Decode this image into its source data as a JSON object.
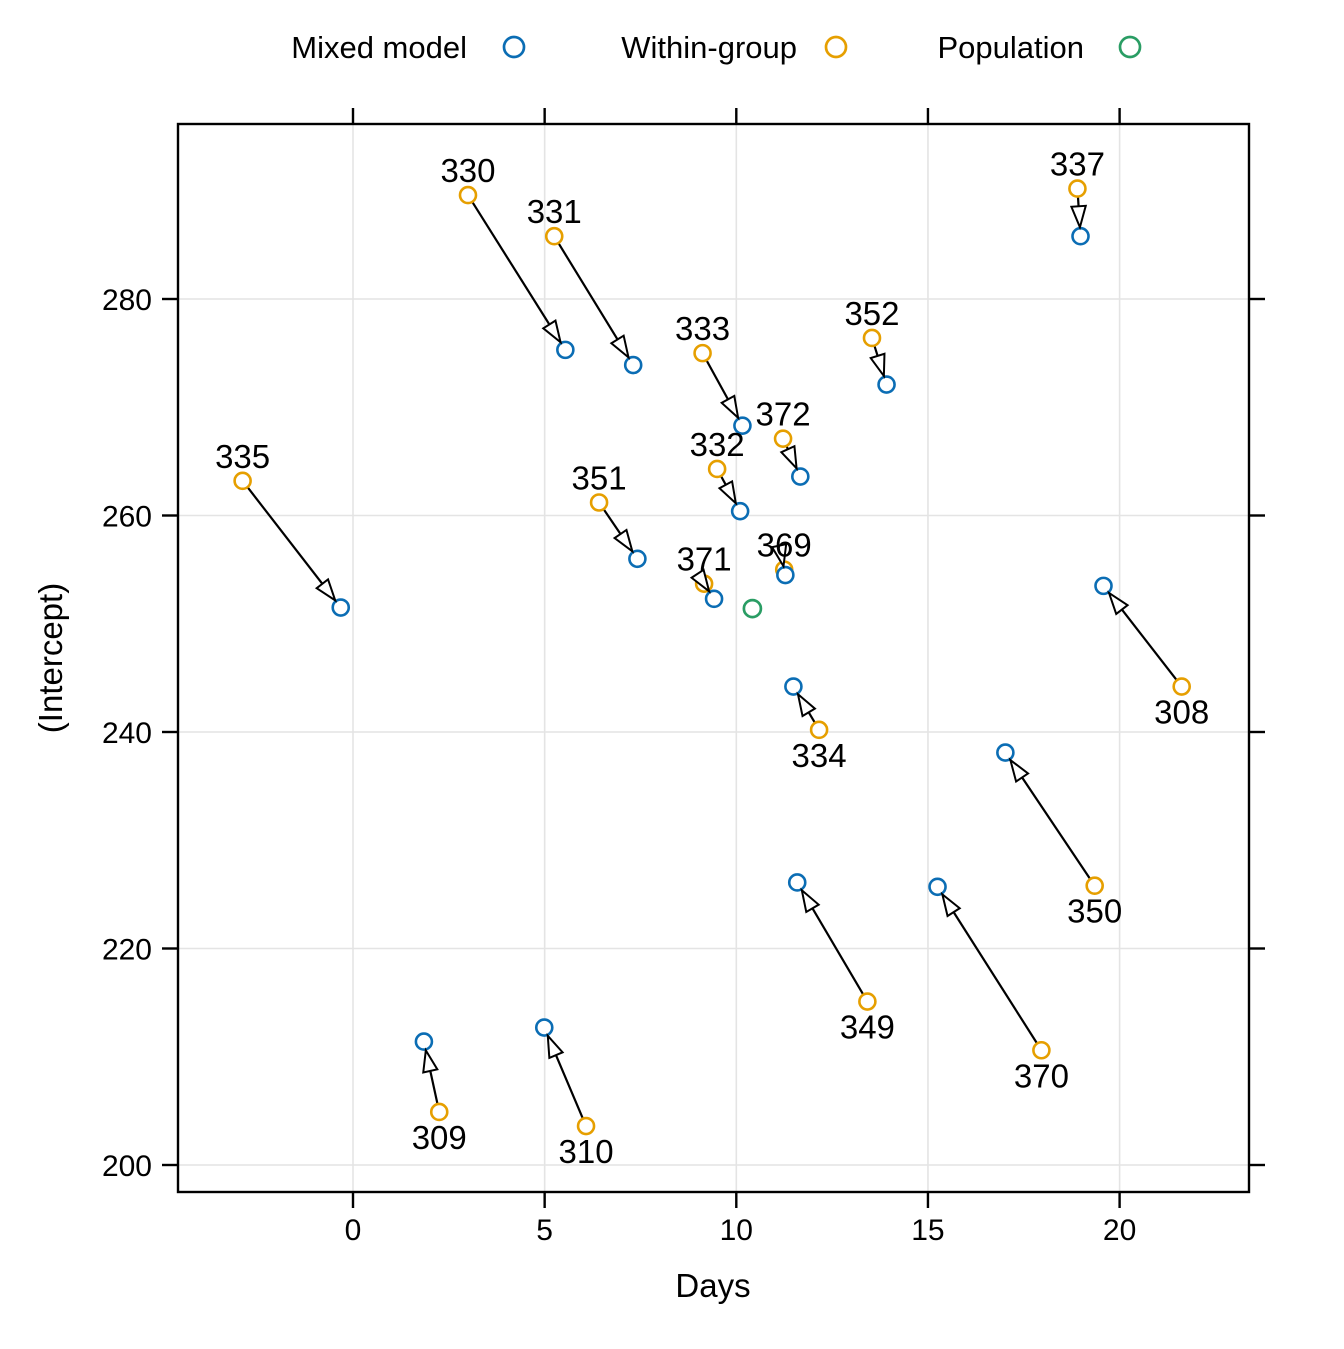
{
  "legend": {
    "items": [
      {
        "key": "mixed",
        "label": "Mixed model",
        "color": "#0B6DB4"
      },
      {
        "key": "within",
        "label": "Within-group",
        "color": "#E69F00"
      },
      {
        "key": "population",
        "label": "Population",
        "color": "#2A9D64"
      }
    ]
  },
  "axes": {
    "x_label": "Days",
    "y_label": "(Intercept)",
    "x_ticks": [
      "0",
      "5",
      "10",
      "15",
      "20"
    ],
    "y_ticks": [
      "200",
      "220",
      "240",
      "260",
      "280"
    ]
  },
  "chart_data": {
    "type": "scatter",
    "title": "",
    "xlabel": "Days",
    "ylabel": "(Intercept)",
    "xlim": [
      -4.57,
      23.38
    ],
    "ylim": [
      197.5,
      296.2
    ],
    "x_tick_values": [
      0,
      5,
      10,
      15,
      20
    ],
    "y_tick_values": [
      200,
      220,
      240,
      260,
      280
    ],
    "grid": true,
    "legend_position": "top",
    "arrow_meaning": "arrow points from within-group estimate to mixed-model estimate",
    "population": {
      "days": 10.42,
      "intercept": 251.4
    },
    "subjects": [
      {
        "id": "330",
        "within": {
          "days": 3.0,
          "intercept": 289.6
        },
        "mixed": {
          "days": 5.54,
          "intercept": 275.3
        },
        "label_side": "above"
      },
      {
        "id": "331",
        "within": {
          "days": 5.25,
          "intercept": 285.8
        },
        "mixed": {
          "days": 7.31,
          "intercept": 273.9
        },
        "label_side": "above"
      },
      {
        "id": "337",
        "within": {
          "days": 18.9,
          "intercept": 290.2
        },
        "mixed": {
          "days": 18.98,
          "intercept": 285.8
        },
        "label_side": "above"
      },
      {
        "id": "352",
        "within": {
          "days": 13.54,
          "intercept": 276.4
        },
        "mixed": {
          "days": 13.92,
          "intercept": 272.1
        },
        "label_side": "above"
      },
      {
        "id": "333",
        "within": {
          "days": 9.12,
          "intercept": 275.0
        },
        "mixed": {
          "days": 10.16,
          "intercept": 268.3
        },
        "label_side": "above"
      },
      {
        "id": "372",
        "within": {
          "days": 11.22,
          "intercept": 267.1
        },
        "mixed": {
          "days": 11.67,
          "intercept": 263.6
        },
        "label_side": "above"
      },
      {
        "id": "332",
        "within": {
          "days": 9.5,
          "intercept": 264.3
        },
        "mixed": {
          "days": 10.1,
          "intercept": 260.4
        },
        "label_side": "above"
      },
      {
        "id": "335",
        "within": {
          "days": -2.88,
          "intercept": 263.2
        },
        "mixed": {
          "days": -0.32,
          "intercept": 251.5
        },
        "label_side": "above"
      },
      {
        "id": "351",
        "within": {
          "days": 6.42,
          "intercept": 261.2
        },
        "mixed": {
          "days": 7.42,
          "intercept": 256.0
        },
        "label_side": "above"
      },
      {
        "id": "371",
        "within": {
          "days": 9.16,
          "intercept": 253.7
        },
        "mixed": {
          "days": 9.42,
          "intercept": 252.3
        },
        "label_side": "above"
      },
      {
        "id": "369",
        "within": {
          "days": 11.25,
          "intercept": 255.0
        },
        "mixed": {
          "days": 11.28,
          "intercept": 254.5
        },
        "label_side": "above"
      },
      {
        "id": "308",
        "within": {
          "days": 21.62,
          "intercept": 244.2
        },
        "mixed": {
          "days": 19.58,
          "intercept": 253.5
        },
        "label_side": "below"
      },
      {
        "id": "334",
        "within": {
          "days": 12.16,
          "intercept": 240.2
        },
        "mixed": {
          "days": 11.49,
          "intercept": 244.2
        },
        "label_side": "below"
      },
      {
        "id": "350",
        "within": {
          "days": 19.35,
          "intercept": 225.8
        },
        "mixed": {
          "days": 17.02,
          "intercept": 238.1
        },
        "label_side": "below"
      },
      {
        "id": "349",
        "within": {
          "days": 13.42,
          "intercept": 215.1
        },
        "mixed": {
          "days": 11.59,
          "intercept": 226.1
        },
        "label_side": "below"
      },
      {
        "id": "370",
        "within": {
          "days": 17.96,
          "intercept": 210.6
        },
        "mixed": {
          "days": 15.25,
          "intercept": 225.7
        },
        "label_side": "below"
      },
      {
        "id": "309",
        "within": {
          "days": 2.25,
          "intercept": 204.9
        },
        "mixed": {
          "days": 1.85,
          "intercept": 211.4
        },
        "label_side": "below"
      },
      {
        "id": "310",
        "within": {
          "days": 6.08,
          "intercept": 203.6
        },
        "mixed": {
          "days": 4.99,
          "intercept": 212.7
        },
        "label_side": "below"
      }
    ]
  }
}
